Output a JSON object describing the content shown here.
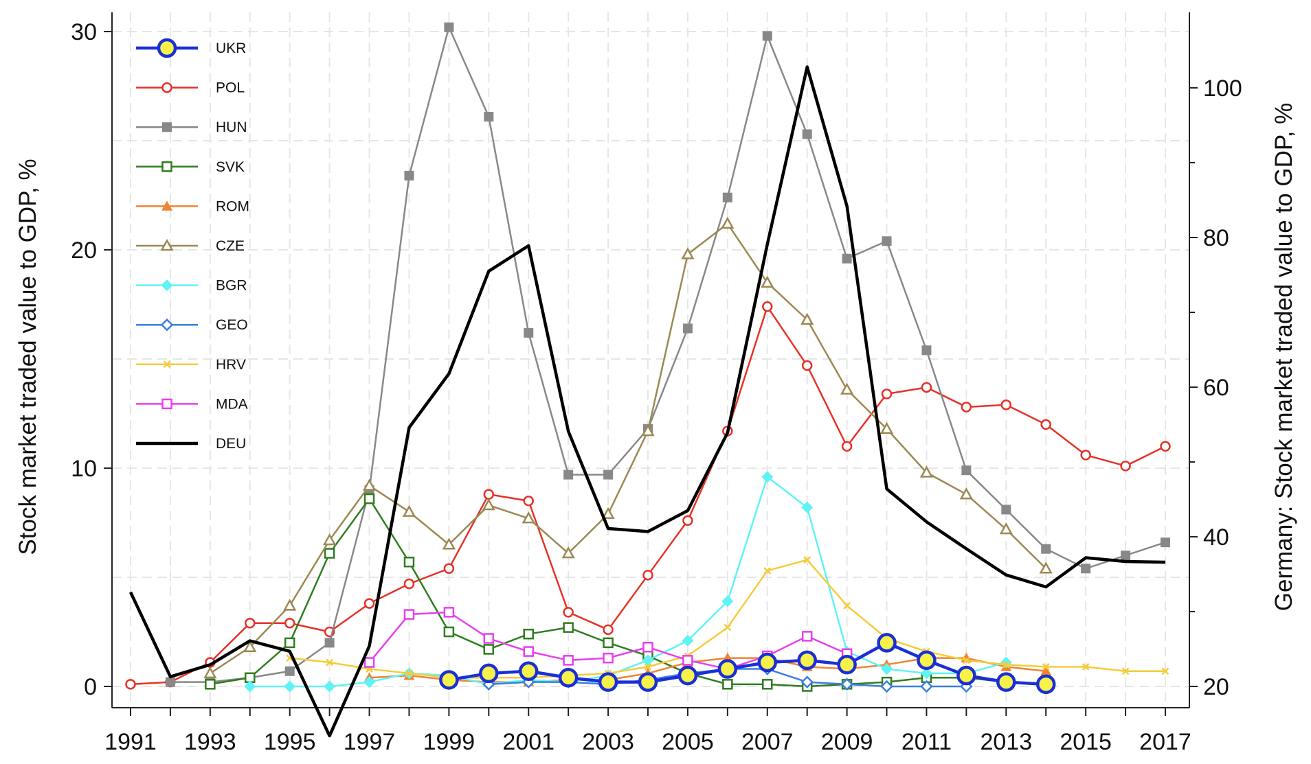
{
  "chart_data": {
    "type": "line",
    "title": "",
    "xlabel": "",
    "ylabel": "Stock market traded value to GDP, %",
    "y2label": "Germany: Stock market traded value to GDP, %",
    "x": [
      1991,
      1992,
      1993,
      1994,
      1995,
      1996,
      1997,
      1998,
      1999,
      2000,
      2001,
      2002,
      2003,
      2004,
      2005,
      2006,
      2007,
      2008,
      2009,
      2010,
      2011,
      2012,
      2013,
      2014,
      2015,
      2016,
      2017
    ],
    "xlim": [
      1991,
      2017
    ],
    "xticks": [
      "1991",
      "1993",
      "1995",
      "1997",
      "1999",
      "2001",
      "2003",
      "2005",
      "2007",
      "2009",
      "2011",
      "2013",
      "2015",
      "2017"
    ],
    "ylim": [
      0,
      30
    ],
    "yticks": [
      "0",
      "10",
      "20",
      "30"
    ],
    "y2lim": [
      14,
      104
    ],
    "y2ticks": [
      "20",
      "40",
      "60",
      "80",
      "100"
    ],
    "grid": true,
    "legend_position": "top-left",
    "series": [
      {
        "name": "UKR",
        "axis": "left",
        "color": "#1a2fd6",
        "marker": "big-circle",
        "values": [
          null,
          null,
          null,
          null,
          null,
          null,
          null,
          null,
          0.3,
          0.6,
          0.7,
          0.4,
          0.2,
          0.2,
          0.5,
          0.8,
          1.1,
          1.2,
          1.0,
          2.0,
          1.2,
          0.5,
          0.2,
          0.1,
          null,
          null,
          null
        ]
      },
      {
        "name": "POL",
        "axis": "left",
        "color": "#e63228",
        "marker": "circle-open",
        "values": [
          0.1,
          0.2,
          1.1,
          2.9,
          2.9,
          2.5,
          3.8,
          4.7,
          5.4,
          8.8,
          8.5,
          3.4,
          2.6,
          5.1,
          7.6,
          11.7,
          17.4,
          14.7,
          11.0,
          13.4,
          13.7,
          12.8,
          12.9,
          12.0,
          10.6,
          10.1,
          11.0
        ]
      },
      {
        "name": "HUN",
        "axis": "left",
        "color": "#888888",
        "marker": "square-filled",
        "values": [
          null,
          0.2,
          0.2,
          0.4,
          0.7,
          2.0,
          9.0,
          23.4,
          30.2,
          26.1,
          16.2,
          9.7,
          9.7,
          11.8,
          16.4,
          22.4,
          29.8,
          25.3,
          19.6,
          20.4,
          15.4,
          9.9,
          8.1,
          6.3,
          5.4,
          6.0,
          6.6
        ]
      },
      {
        "name": "SVK",
        "axis": "left",
        "color": "#2e7d1e",
        "marker": "square-open",
        "values": [
          null,
          null,
          0.1,
          0.4,
          2.0,
          6.1,
          8.6,
          5.7,
          2.5,
          1.7,
          2.4,
          2.7,
          2.0,
          1.4,
          0.6,
          0.1,
          0.1,
          0.0,
          0.1,
          0.2,
          0.4,
          0.4,
          0.2,
          null,
          null,
          null,
          null
        ]
      },
      {
        "name": "ROM",
        "axis": "left",
        "color": "#f08432",
        "marker": "triangle-filled",
        "values": [
          null,
          null,
          null,
          null,
          null,
          null,
          0.4,
          0.5,
          0.3,
          0.2,
          0.2,
          0.3,
          0.3,
          0.6,
          1.1,
          1.3,
          1.3,
          0.9,
          0.8,
          1.0,
          1.3,
          1.3,
          0.9,
          0.7,
          null,
          null,
          null
        ]
      },
      {
        "name": "CZE",
        "axis": "left",
        "color": "#9c8852",
        "marker": "triangle-open",
        "values": [
          null,
          null,
          0.6,
          1.8,
          3.7,
          6.7,
          9.2,
          8.0,
          6.5,
          8.3,
          7.7,
          6.1,
          7.9,
          11.7,
          19.8,
          21.2,
          18.5,
          16.8,
          13.6,
          11.8,
          9.8,
          8.8,
          7.2,
          5.4,
          null,
          null,
          null
        ]
      },
      {
        "name": "BGR",
        "axis": "left",
        "color": "#5ff3f5",
        "marker": "diamond-filled",
        "values": [
          null,
          null,
          null,
          0.0,
          0.0,
          0.0,
          0.2,
          0.6,
          0.5,
          0.1,
          0.3,
          0.2,
          0.5,
          1.2,
          2.1,
          3.9,
          9.6,
          8.2,
          1.6,
          0.8,
          0.6,
          0.6,
          1.1,
          null,
          null,
          null,
          null
        ]
      },
      {
        "name": "GEO",
        "axis": "left",
        "color": "#3a7fe0",
        "marker": "diamond-open",
        "values": [
          null,
          null,
          null,
          null,
          null,
          null,
          null,
          null,
          null,
          0.1,
          0.2,
          0.2,
          0.1,
          0.3,
          0.6,
          0.8,
          0.8,
          0.2,
          0.1,
          0.0,
          0.0,
          0.0,
          null,
          null,
          null,
          null,
          null
        ]
      },
      {
        "name": "HRV",
        "axis": "left",
        "color": "#f5cc3a",
        "marker": "x",
        "values": [
          null,
          null,
          null,
          null,
          1.3,
          1.1,
          0.8,
          0.6,
          0.4,
          0.4,
          0.4,
          0.5,
          0.6,
          0.9,
          1.4,
          2.7,
          5.3,
          5.8,
          3.7,
          2.2,
          1.6,
          1.2,
          1.0,
          0.9,
          0.9,
          0.7,
          0.7
        ]
      },
      {
        "name": "MDA",
        "axis": "left",
        "color": "#e83ff0",
        "marker": "square-open",
        "values": [
          null,
          null,
          null,
          null,
          null,
          null,
          1.1,
          3.3,
          3.4,
          2.2,
          1.6,
          1.2,
          1.3,
          1.8,
          1.2,
          0.8,
          1.4,
          2.3,
          1.5,
          null,
          null,
          null,
          null,
          null,
          null,
          null,
          null
        ]
      },
      {
        "name": "DEU",
        "axis": "right",
        "color": "#000000",
        "marker": "none",
        "values": [
          32.6,
          21.3,
          22.9,
          26.1,
          24.7,
          13.4,
          25.4,
          54.6,
          61.8,
          75.5,
          78.9,
          54.1,
          41.1,
          40.7,
          43.5,
          53.9,
          79.1,
          102.8,
          84.2,
          46.4,
          42.0,
          38.4,
          34.9,
          33.3,
          37.2,
          36.7,
          36.6
        ]
      }
    ]
  }
}
